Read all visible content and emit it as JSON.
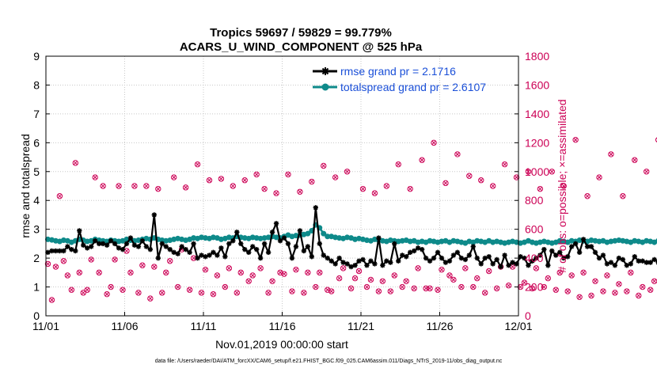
{
  "title_line1": "Tropics 59697 / 59829 = 99.779%",
  "title_line2": "ACARS_U_WIND_COMPONENT @ 525 hPa",
  "footer": "data file: /Users/raeder/DAI/ATM_forcXX/CAM6_setup/f.e21.FHIST_BGC.f09_025.CAM6assim.011/Diags_NTrS_2019-11/obs_diag_output.nc",
  "colors": {
    "rmse": "#000000",
    "spread": "#0e8a8a",
    "obs": "#cc0055",
    "legend_text": "#1a4fd8"
  },
  "chart_data": {
    "type": "line",
    "xlabel": "Nov.01,2019 00:00:00 start",
    "ylabel_left": "rmse and totalspread",
    "ylabel_right": "# of obs: o=possible; ×=assimilated",
    "xlim": [
      0,
      30
    ],
    "ylim_left": [
      0,
      9
    ],
    "ylim_right": [
      0,
      1800
    ],
    "x_ticks": [
      0,
      5,
      10,
      15,
      20,
      25,
      30
    ],
    "x_tick_labels": [
      "11/01",
      "11/06",
      "11/11",
      "11/16",
      "11/21",
      "11/26",
      "12/01"
    ],
    "y_ticks_left": [
      0,
      1,
      2,
      3,
      4,
      5,
      6,
      7,
      8,
      9
    ],
    "y_tick_labels_left": [
      "0",
      "1",
      "2",
      "3",
      "4",
      "5",
      "6",
      "7",
      "8",
      "9"
    ],
    "y_ticks_right": [
      0,
      200,
      400,
      600,
      800,
      1000,
      1200,
      1400,
      1600,
      1800
    ],
    "y_tick_labels_right": [
      "0",
      "200",
      "400",
      "600",
      "800",
      "1000",
      "1200",
      "1400",
      "1600",
      "1800"
    ],
    "legend": [
      "rmse grand pr = 2.1716",
      "totalspread grand pr = 2.6107"
    ],
    "legend_position": "top-right",
    "rmse_x_start": 0.125,
    "rmse_x_step": 0.25,
    "rmse": [
      2.2,
      2.25,
      2.25,
      2.25,
      2.25,
      2.4,
      2.3,
      2.25,
      2.95,
      2.45,
      2.35,
      2.4,
      2.6,
      2.5,
      2.5,
      2.45,
      2.6,
      2.5,
      2.35,
      2.3,
      2.5,
      2.7,
      2.45,
      2.4,
      2.6,
      2.4,
      2.3,
      3.5,
      2.0,
      2.5,
      2.4,
      2.3,
      2.2,
      2.15,
      2.4,
      2.3,
      2.2,
      2.5,
      2.0,
      2.1,
      2.05,
      2.1,
      2.2,
      2.1,
      2.35,
      2.05,
      2.5,
      2.6,
      2.9,
      2.5,
      2.3,
      2.2,
      2.4,
      2.3,
      2.0,
      2.5,
      2.2,
      2.9,
      3.2,
      2.6,
      2.7,
      2.5,
      2.0,
      2.4,
      2.95,
      2.25,
      2.4,
      2.05,
      3.75,
      2.5,
      2.1,
      2.0,
      1.9,
      1.8,
      2.0,
      1.85,
      1.8,
      1.7,
      1.75,
      1.9,
      1.95,
      1.75,
      1.9,
      1.8,
      2.7,
      1.75,
      1.9,
      1.85,
      2.5,
      1.9,
      2.1,
      2.05,
      2.2,
      2.25,
      2.35,
      2.3,
      2.0,
      1.9,
      2.0,
      2.2,
      2.0,
      1.85,
      1.9,
      2.1,
      2.2,
      2.0,
      1.95,
      2.1,
      2.4,
      2.0,
      1.8,
      2.0,
      2.05,
      1.8,
      1.95,
      1.7,
      2.1,
      1.75,
      1.85,
      1.8,
      2.05,
      2.0,
      1.75,
      1.9,
      2.0,
      2.1,
      2.3,
      1.75,
      2.25,
      2.1,
      2.2,
      2.0,
      2.05,
      2.4,
      2.5,
      2.2,
      2.65,
      2.4,
      2.4,
      2.2,
      2.0,
      2.1,
      1.8,
      1.85,
      1.75,
      2.0,
      1.95,
      1.75,
      1.8,
      2.05,
      1.9,
      1.9,
      1.85,
      1.85,
      1.95,
      1.85
    ],
    "totalspread_x_start": 0.125,
    "totalspread_x_step": 0.25,
    "totalspread": [
      2.65,
      2.63,
      2.6,
      2.58,
      2.62,
      2.6,
      2.55,
      2.6,
      2.65,
      2.62,
      2.58,
      2.6,
      2.65,
      2.62,
      2.6,
      2.58,
      2.62,
      2.6,
      2.58,
      2.6,
      2.65,
      2.62,
      2.6,
      2.62,
      2.65,
      2.68,
      2.65,
      2.7,
      2.65,
      2.62,
      2.6,
      2.62,
      2.65,
      2.68,
      2.65,
      2.62,
      2.65,
      2.7,
      2.68,
      2.72,
      2.7,
      2.68,
      2.72,
      2.7,
      2.65,
      2.68,
      2.72,
      2.7,
      2.75,
      2.72,
      2.7,
      2.68,
      2.72,
      2.7,
      2.68,
      2.7,
      2.72,
      2.75,
      2.72,
      2.7,
      2.75,
      2.8,
      2.75,
      2.78,
      2.8,
      2.82,
      2.85,
      2.95,
      3.15,
      3.05,
      2.85,
      2.75,
      2.75,
      2.72,
      2.7,
      2.68,
      2.72,
      2.7,
      2.65,
      2.68,
      2.65,
      2.62,
      2.6,
      2.65,
      2.62,
      2.6,
      2.58,
      2.62,
      2.6,
      2.58,
      2.6,
      2.62,
      2.58,
      2.6,
      2.55,
      2.58,
      2.55,
      2.6,
      2.58,
      2.55,
      2.58,
      2.6,
      2.55,
      2.6,
      2.58,
      2.55,
      2.52,
      2.58,
      2.55,
      2.6,
      2.58,
      2.55,
      2.6,
      2.55,
      2.58,
      2.55,
      2.52,
      2.55,
      2.58,
      2.55,
      2.52,
      2.55,
      2.6,
      2.55,
      2.52,
      2.55,
      2.58,
      2.55,
      2.52,
      2.55,
      2.6,
      2.58,
      2.55,
      2.6,
      2.58,
      2.62,
      2.6,
      2.58,
      2.62,
      2.6,
      2.58,
      2.6,
      2.55,
      2.58,
      2.6,
      2.62,
      2.6,
      2.58,
      2.55,
      2.6,
      2.58,
      2.55,
      2.6,
      2.58,
      2.55,
      2.6,
      2.55,
      2.5
    ],
    "obs_x_start": 0.125,
    "obs_x_step": 0.25,
    "obs_counts": [
      360,
      110,
      340,
      830,
      380,
      280,
      180,
      1060,
      300,
      160,
      180,
      390,
      960,
      300,
      900,
      150,
      200,
      390,
      900,
      180,
      450,
      300,
      900,
      160,
      350,
      900,
      120,
      340,
      880,
      160,
      300,
      380,
      960,
      200,
      460,
      890,
      180,
      400,
      1050,
      160,
      320,
      940,
      150,
      280,
      950,
      200,
      330,
      900,
      160,
      300,
      940,
      240,
      280,
      980,
      330,
      880,
      160,
      240,
      850,
      300,
      290,
      980,
      170,
      320,
      860,
      160,
      300,
      930,
      200,
      300,
      1040,
      180,
      170,
      960,
      260,
      330,
      1000,
      190,
      260,
      310,
      880,
      200,
      250,
      850,
      170,
      240,
      900,
      170,
      280,
      1050,
      200,
      240,
      880,
      190,
      330,
      1080,
      190,
      190,
      1200,
      180,
      320,
      920,
      280,
      250,
      1120,
      200,
      330,
      970,
      200,
      260,
      940,
      160,
      310,
      900,
      190,
      340,
      1050,
      210,
      340,
      960,
      200,
      230,
      1000,
      190,
      330,
      880,
      200,
      260,
      1000,
      180,
      300,
      900,
      170,
      280,
      1220,
      130,
      300,
      830,
      140,
      240,
      960,
      170,
      280,
      1120,
      160,
      220,
      830,
      170,
      300,
      1080,
      140,
      200,
      1000,
      180,
      240,
      1220,
      0
    ]
  }
}
